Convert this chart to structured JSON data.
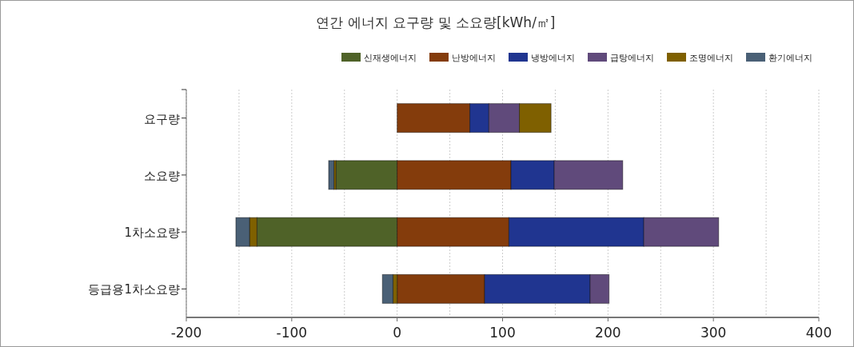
{
  "chart_data": {
    "type": "bar",
    "title": "연간 에너지 요구량 및 소요량[kWh/㎡]",
    "orientation": "horizontal",
    "stacked": true,
    "categories": [
      "요구량",
      "소요량",
      "1차소요량",
      "등급용1차소요량"
    ],
    "series": [
      {
        "name": "신재생에너지",
        "color": "#4f6228",
        "values": [
          null,
          -58,
          -133,
          0
        ]
      },
      {
        "name": "난방에너지",
        "color": "#843c0c",
        "values": [
          69,
          108,
          106,
          83
        ]
      },
      {
        "name": "냉방에너지",
        "color": "#203590",
        "values": [
          18,
          41,
          128,
          100
        ]
      },
      {
        "name": "급탕에너지",
        "color": "#604a7b",
        "values": [
          29,
          65,
          71,
          18
        ]
      },
      {
        "name": "조명에너지",
        "color": "#7f6000",
        "values": [
          30,
          -2,
          -7,
          -4
        ]
      },
      {
        "name": "환기에너지",
        "color": "#4a6076",
        "values": [
          null,
          -5,
          -13,
          -10
        ]
      }
    ],
    "xlim": [
      -200,
      400
    ],
    "xticks": [
      -200,
      {
        "value": -150,
        "label": null
      },
      -100,
      {
        "value": -50,
        "label": null
      },
      0,
      {
        "value": 50,
        "label": null
      },
      100,
      {
        "value": 150,
        "label": null
      },
      200,
      {
        "value": 250,
        "label": null
      },
      300,
      {
        "value": 350,
        "label": null
      },
      400
    ],
    "grid": "x",
    "legend": "top right"
  }
}
